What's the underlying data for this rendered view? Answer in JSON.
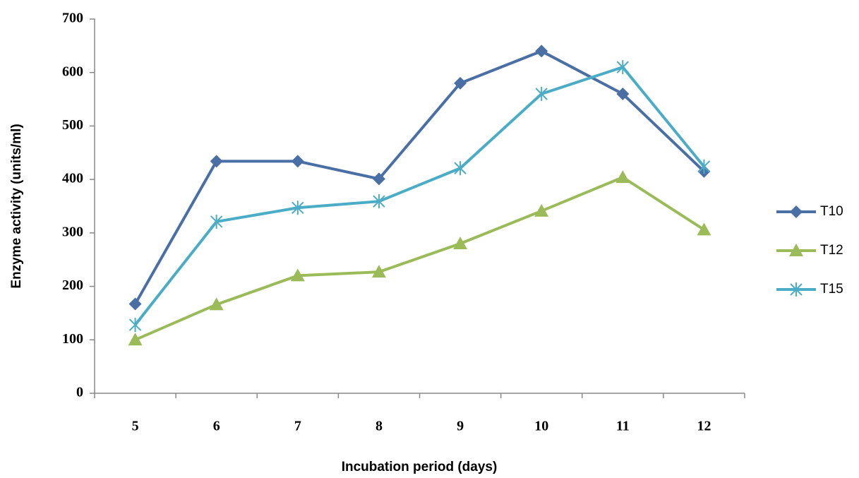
{
  "chart_data": {
    "type": "line",
    "x_label": "Incubation period (days)",
    "y_label": "Enzyme activity (units/ml)",
    "categories": [
      "5",
      "6",
      "7",
      "8",
      "9",
      "10",
      "11",
      "12"
    ],
    "series": [
      {
        "name": "T10",
        "color": "#4a6fa5",
        "marker": "diamond",
        "values": [
          167,
          434,
          434,
          401,
          580,
          640,
          560,
          415
        ]
      },
      {
        "name": "T12",
        "color": "#9bbb59",
        "marker": "triangle",
        "values": [
          100,
          166,
          220,
          227,
          280,
          341,
          404,
          306
        ]
      },
      {
        "name": "T15",
        "color": "#4bacc6",
        "marker": "asterisk",
        "values": [
          128,
          321,
          347,
          359,
          421,
          560,
          610,
          424
        ]
      }
    ],
    "ylim": [
      0,
      700
    ],
    "yticks": [
      0,
      100,
      200,
      300,
      400,
      500,
      600,
      700
    ],
    "grid": false,
    "legend": "right"
  }
}
